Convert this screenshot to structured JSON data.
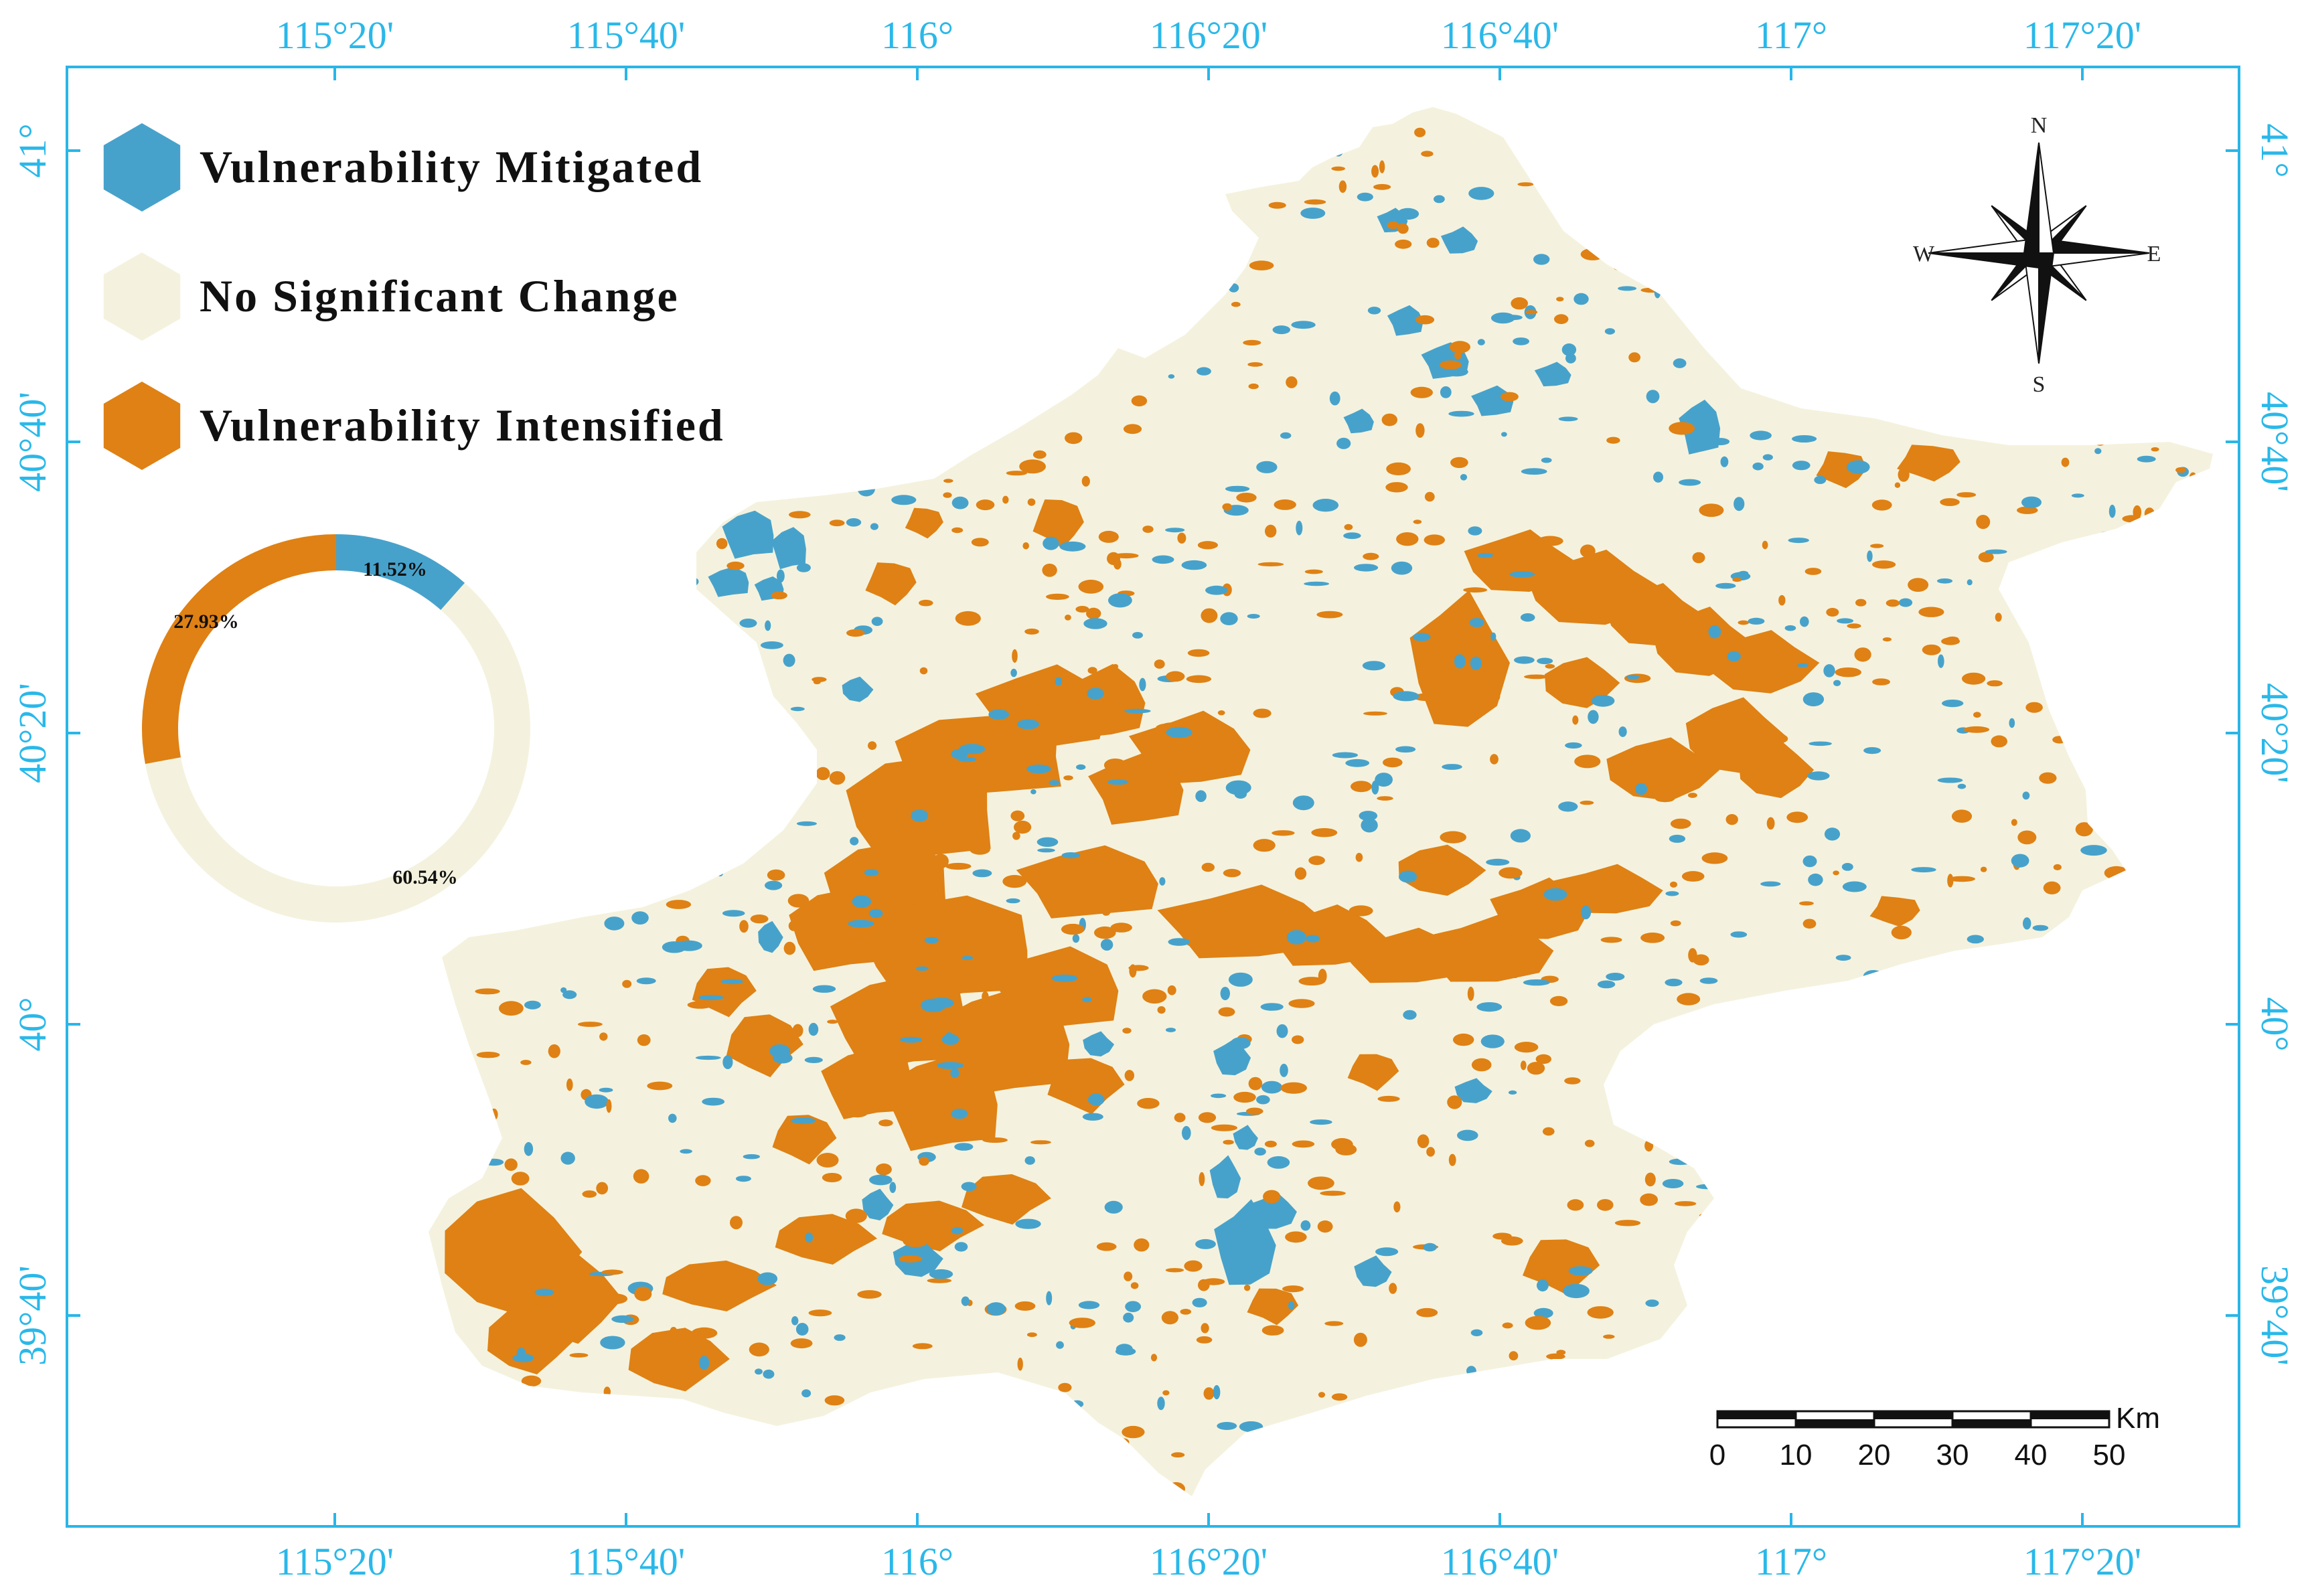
{
  "colors": {
    "mitigated": "#47a2cb",
    "no_change": "#f4f2de",
    "intensified": "#df8114",
    "frame": "#29b6e8",
    "tick_text": "#2ab8e9"
  },
  "axes": {
    "top_ticks": [
      "115°20'",
      "115°40'",
      "116°",
      "116°20'",
      "116°40'",
      "117°",
      "117°20'"
    ],
    "bottom_ticks": [
      "115°20'",
      "115°40'",
      "116°",
      "116°20'",
      "116°40'",
      "117°",
      "117°20'"
    ],
    "left_ticks": [
      "41°",
      "40°40'",
      "40°20'",
      "40°",
      "39°40'"
    ],
    "right_ticks": [
      "41°",
      "40°40'",
      "40°20'",
      "40°",
      "39°40'"
    ]
  },
  "legend": {
    "items": [
      {
        "label": "Vulnerability Mitigated",
        "color": "#47a2cb",
        "icon": "hexagon"
      },
      {
        "label": "No Significant Change",
        "color": "#f4f2de",
        "icon": "hexagon"
      },
      {
        "label": "Vulnerability Intensified",
        "color": "#df8114",
        "icon": "hexagon"
      }
    ]
  },
  "donut": {
    "segments": [
      {
        "name": "Vulnerability Mitigated",
        "percent": 11.52,
        "label": "11.52%",
        "color": "#47a2cb"
      },
      {
        "name": "No Significant Change",
        "percent": 60.54,
        "label": "60.54%",
        "color": "#f4f2de"
      },
      {
        "name": "Vulnerability Intensified",
        "percent": 27.93,
        "label": "27.93%",
        "color": "#df8114"
      }
    ]
  },
  "compass": {
    "n": "N",
    "s": "S",
    "e": "E",
    "w": "W",
    "icon": "compass-rose-icon"
  },
  "scale_bar": {
    "unit": "Km",
    "labels": [
      "0",
      "10",
      "20",
      "30",
      "40",
      "50"
    ]
  }
}
